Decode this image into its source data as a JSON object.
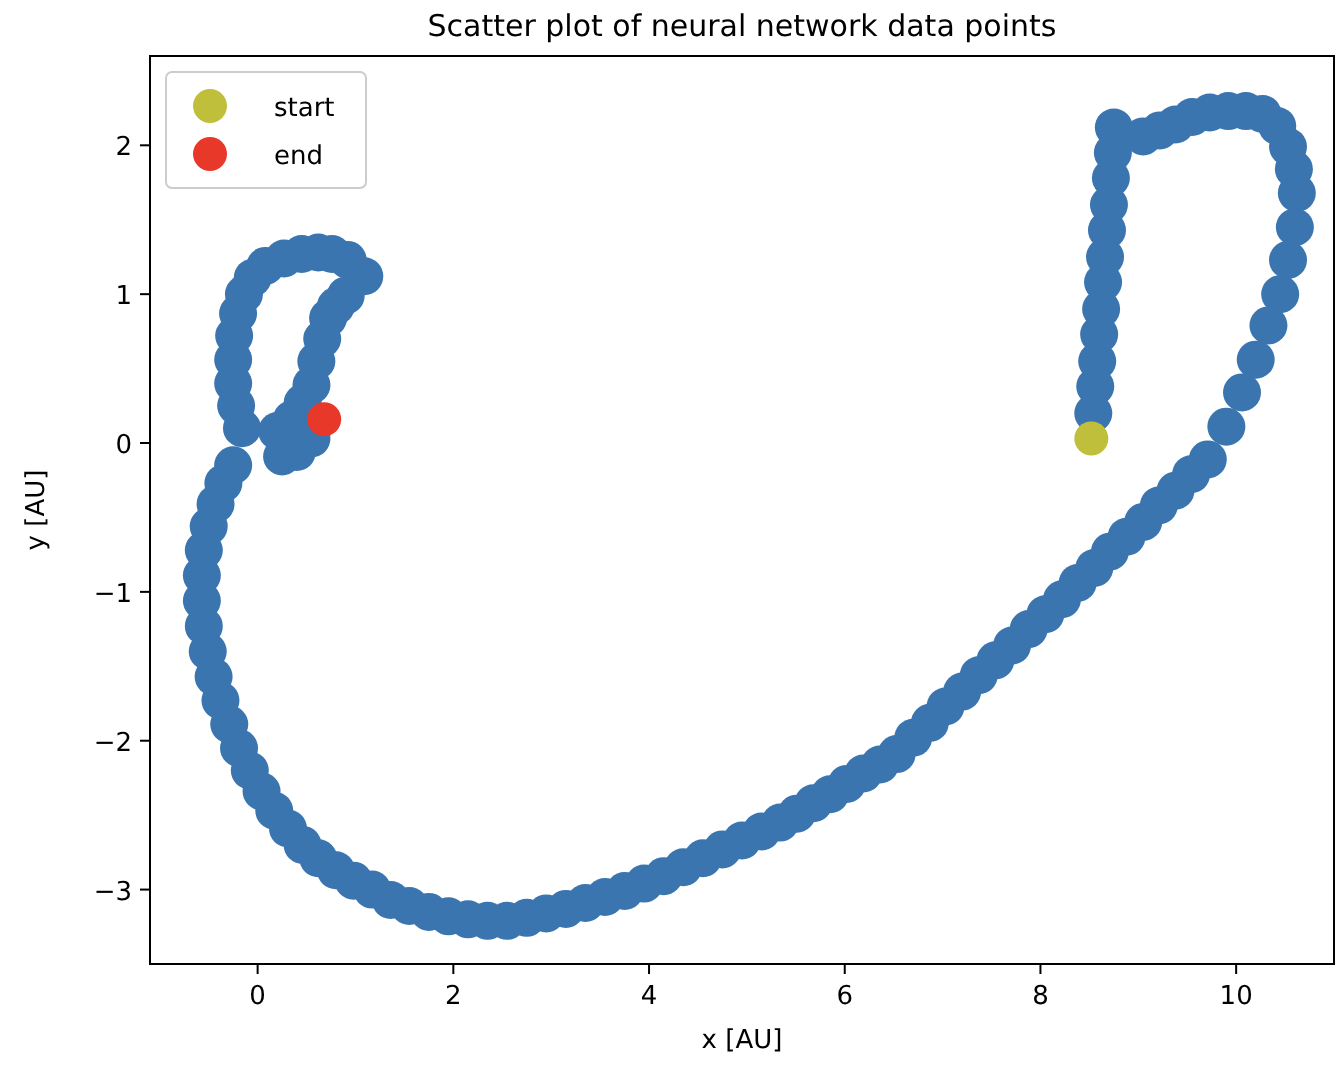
{
  "chart_data": {
    "type": "scatter",
    "title": "Scatter plot of neural network data points",
    "xlabel": "x [AU]",
    "ylabel": "y [AU]",
    "xlim": [
      -1.1,
      11.0
    ],
    "ylim": [
      -3.5,
      2.6
    ],
    "xticks": [
      0,
      2,
      4,
      6,
      8,
      10
    ],
    "yticks": [
      -3,
      -2,
      -1,
      0,
      1,
      2
    ],
    "grid": false,
    "legend": "top left",
    "marker": "circle",
    "series": [
      {
        "color": "#3a75b0",
        "x": [
          8.54,
          8.56,
          8.58,
          8.6,
          8.62,
          8.64,
          8.66,
          8.68,
          8.7,
          8.72,
          8.74,
          8.75,
          9.05,
          9.22,
          9.38,
          9.55,
          9.73,
          9.92,
          10.1,
          10.27,
          10.42,
          10.53,
          10.59,
          10.62,
          10.6,
          10.53,
          10.45,
          10.33,
          10.2,
          10.06,
          9.9,
          9.71,
          9.54,
          9.38,
          9.21,
          9.05,
          8.88,
          8.71,
          8.55,
          8.38,
          8.22,
          8.05,
          7.88,
          7.71,
          7.54,
          7.37,
          7.2,
          7.03,
          6.87,
          6.7,
          6.53,
          6.36,
          6.19,
          6.02,
          5.85,
          5.68,
          5.51,
          5.34,
          5.15,
          4.95,
          4.75,
          4.55,
          4.35,
          4.15,
          3.95,
          3.75,
          3.55,
          3.35,
          3.15,
          2.95,
          2.75,
          2.55,
          2.35,
          2.15,
          1.95,
          1.75,
          1.55,
          1.36,
          1.17,
          0.98,
          0.8,
          0.62,
          0.46,
          0.31,
          0.17,
          0.04,
          -0.08,
          -0.19,
          -0.29,
          -0.38,
          -0.45,
          -0.51,
          -0.55,
          -0.57,
          -0.57,
          -0.55,
          -0.5,
          -0.43,
          -0.35,
          -0.25,
          -0.16,
          -0.22,
          -0.25,
          -0.25,
          -0.24,
          -0.2,
          -0.14,
          -0.05,
          0.08,
          0.27,
          0.45,
          0.62,
          0.76,
          0.92,
          1.09,
          0.9,
          0.8,
          0.72,
          0.66,
          0.6,
          0.55,
          0.46,
          0.35,
          0.2,
          0.25,
          0.4,
          0.55
        ],
        "values": [
          0.2,
          0.38,
          0.55,
          0.73,
          0.9,
          1.08,
          1.25,
          1.43,
          1.6,
          1.78,
          1.95,
          2.12,
          2.06,
          2.1,
          2.14,
          2.19,
          2.22,
          2.23,
          2.23,
          2.21,
          2.13,
          1.99,
          1.84,
          1.68,
          1.45,
          1.23,
          1.0,
          0.79,
          0.56,
          0.34,
          0.11,
          -0.11,
          -0.21,
          -0.32,
          -0.42,
          -0.53,
          -0.63,
          -0.73,
          -0.84,
          -0.94,
          -1.05,
          -1.15,
          -1.25,
          -1.36,
          -1.46,
          -1.56,
          -1.67,
          -1.77,
          -1.88,
          -1.98,
          -2.09,
          -2.16,
          -2.22,
          -2.29,
          -2.36,
          -2.42,
          -2.49,
          -2.55,
          -2.61,
          -2.67,
          -2.73,
          -2.79,
          -2.85,
          -2.91,
          -2.96,
          -3.01,
          -3.05,
          -3.09,
          -3.13,
          -3.16,
          -3.19,
          -3.21,
          -3.21,
          -3.2,
          -3.18,
          -3.15,
          -3.11,
          -3.07,
          -3.0,
          -2.94,
          -2.87,
          -2.79,
          -2.7,
          -2.59,
          -2.47,
          -2.34,
          -2.2,
          -2.05,
          -1.89,
          -1.73,
          -1.57,
          -1.4,
          -1.23,
          -1.06,
          -0.89,
          -0.72,
          -0.56,
          -0.41,
          -0.27,
          -0.15,
          0.1,
          0.25,
          0.4,
          0.56,
          0.72,
          0.87,
          1.0,
          1.11,
          1.19,
          1.24,
          1.27,
          1.28,
          1.27,
          1.23,
          1.12,
          0.99,
          0.92,
          0.84,
          0.7,
          0.55,
          0.39,
          0.27,
          0.16,
          0.08,
          -0.09,
          -0.06,
          0.03
        ]
      },
      {
        "name": "start",
        "color": "#c0bf3c",
        "x": [
          8.52
        ],
        "values": [
          0.03
        ]
      },
      {
        "name": "end",
        "color": "#e8382a",
        "x": [
          0.68
        ],
        "values": [
          0.16
        ]
      }
    ]
  }
}
